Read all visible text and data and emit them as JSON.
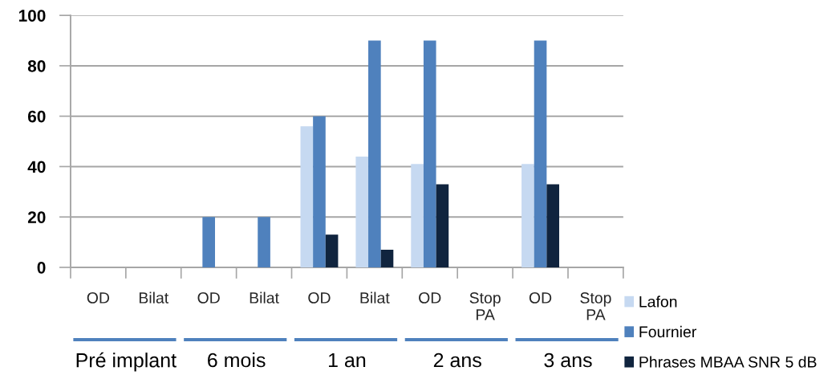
{
  "chart_data": {
    "type": "bar",
    "categories": [
      "OD",
      "Bilat",
      "OD",
      "Bilat",
      "OD",
      "Bilat",
      "OD",
      "Stop PA",
      "OD",
      "Stop PA"
    ],
    "series": [
      {
        "name": "Lafon",
        "color": "#c6d9f1",
        "values": [
          null,
          null,
          null,
          null,
          56,
          44,
          41,
          null,
          41,
          null
        ]
      },
      {
        "name": "Fournier",
        "color": "#4f81bd",
        "values": [
          null,
          null,
          20,
          20,
          60,
          90,
          90,
          null,
          90,
          null
        ]
      },
      {
        "name": "Phrases MBAA SNR 5 dB",
        "color": "#10243e",
        "values": [
          null,
          null,
          null,
          null,
          13,
          7,
          33,
          null,
          33,
          null
        ]
      }
    ],
    "ylim": [
      0,
      100
    ],
    "yticks": [
      0,
      20,
      40,
      60,
      80,
      100
    ],
    "grid": "y",
    "legend": "bottom right",
    "annotations": [
      "Pré implant",
      "6 mois",
      "1 an",
      "2 ans",
      "3 ans"
    ]
  }
}
